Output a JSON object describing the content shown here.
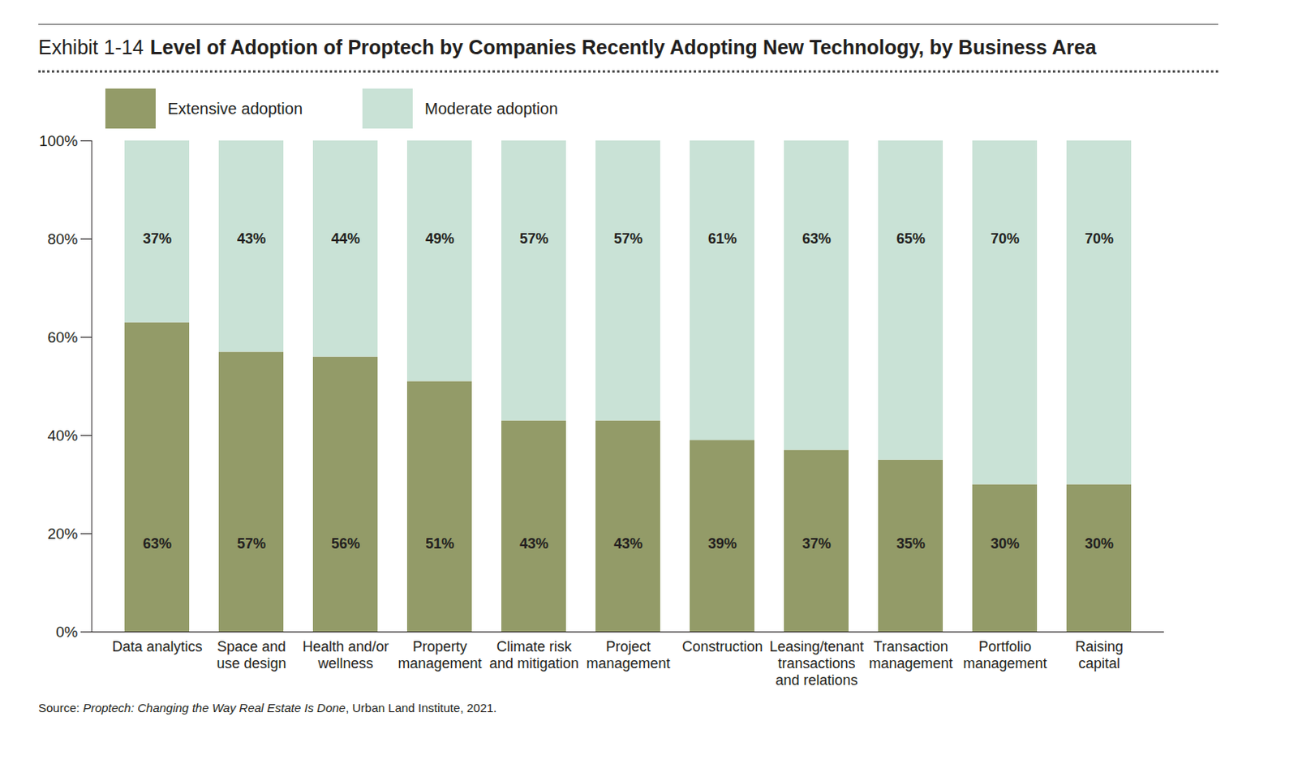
{
  "chart_data": {
    "type": "bar",
    "exhibit": "Exhibit 1-14",
    "title": "Level of Adoption of Proptech by Companies Recently Adopting New Technology, by Business Area",
    "source": {
      "prefix": "Source:",
      "italic": "Proptech: Changing the Way Real Estate Is Done",
      "suffix": ", Urban Land Institute, 2021."
    },
    "categories": [
      "Data analytics",
      "Space and\nuse design",
      "Health and/or\nwellness",
      "Property\nmanagement",
      "Climate risk\nand mitigation",
      "Project\nmanagement",
      "Construction",
      "Leasing/tenant\ntransactions\nand relations",
      "Transaction\nmanagement",
      "Portfolio\nmanagement",
      "Raising\ncapital"
    ],
    "series": [
      {
        "name": "Extensive adoption",
        "color": "#939b68",
        "values": [
          63,
          57,
          56,
          51,
          43,
          43,
          39,
          37,
          35,
          30,
          30
        ],
        "value_labels": [
          "63%",
          "57%",
          "56%",
          "51%",
          "43%",
          "43%",
          "39%",
          "37%",
          "35%",
          "30%",
          "30%"
        ]
      },
      {
        "name": "Moderate adoption",
        "color": "#c9e2d6",
        "values": [
          37,
          43,
          44,
          49,
          57,
          57,
          61,
          63,
          65,
          70,
          70
        ],
        "value_labels": [
          "37%",
          "43%",
          "44%",
          "49%",
          "57%",
          "57%",
          "61%",
          "63%",
          "65%",
          "70%",
          "70%"
        ]
      }
    ],
    "stacked": true,
    "data_labels": true,
    "grid": false,
    "legend": "top left",
    "ylim": [
      0,
      100
    ],
    "yticks": [
      {
        "value": 0,
        "label": "0%"
      },
      {
        "value": 20,
        "label": "20%"
      },
      {
        "value": 40,
        "label": "40%"
      },
      {
        "value": 60,
        "label": "60%"
      },
      {
        "value": 80,
        "label": "80%"
      },
      {
        "value": 100,
        "label": "100%"
      }
    ]
  }
}
